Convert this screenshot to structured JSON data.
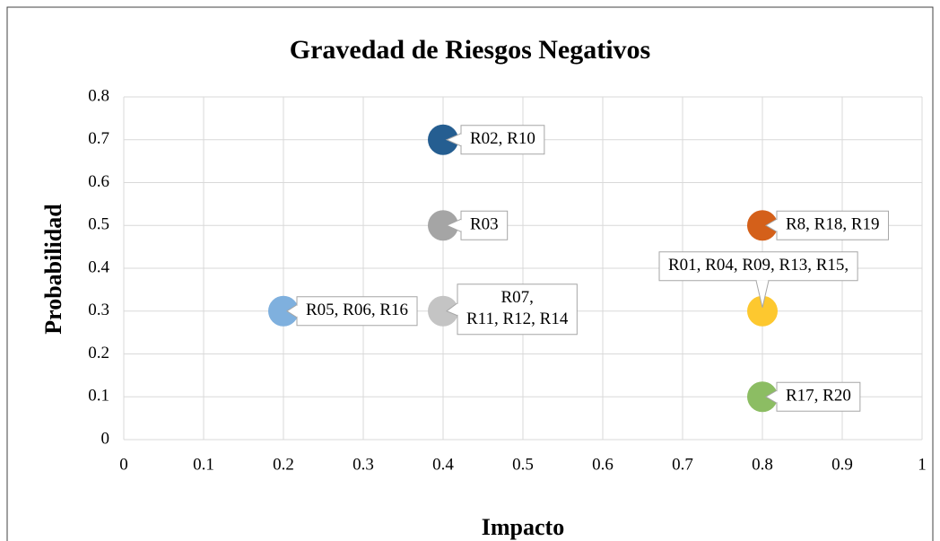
{
  "chart_data": {
    "type": "scatter",
    "title": "Gravedad de Riesgos Negativos",
    "x_label": "Impacto",
    "y_label": "Probabilidad",
    "xlim": [
      0,
      1
    ],
    "xticks": [
      0,
      0.1,
      0.2,
      0.3,
      0.4,
      0.5,
      0.6,
      0.7,
      0.8,
      0.9,
      1
    ],
    "ylim": [
      0,
      0.8
    ],
    "yticks": [
      0,
      0.1,
      0.2,
      0.3,
      0.4,
      0.5,
      0.6,
      0.7,
      0.8
    ],
    "grid": true,
    "points": [
      {
        "x": 0.4,
        "y": 0.7,
        "color": "#255e91",
        "label": [
          "R02, R10"
        ]
      },
      {
        "x": 0.4,
        "y": 0.5,
        "color": "#a5a5a5",
        "label": [
          "R03"
        ]
      },
      {
        "x": 0.8,
        "y": 0.5,
        "color": "#d4601a",
        "label": [
          "R8, R18, R19"
        ]
      },
      {
        "x": 0.8,
        "y": 0.3,
        "color": "#fdc82f",
        "label": [
          "R01, R04, R09, R13, R15,"
        ]
      },
      {
        "x": 0.2,
        "y": 0.3,
        "color": "#7fb0de",
        "label": [
          "R05, R06, R16"
        ]
      },
      {
        "x": 0.4,
        "y": 0.3,
        "color": "#c4c4c4",
        "label": [
          "R07,",
          "R11, R12, R14"
        ]
      },
      {
        "x": 0.8,
        "y": 0.1,
        "color": "#8cbd63",
        "label": [
          "R17, R20"
        ]
      }
    ]
  }
}
